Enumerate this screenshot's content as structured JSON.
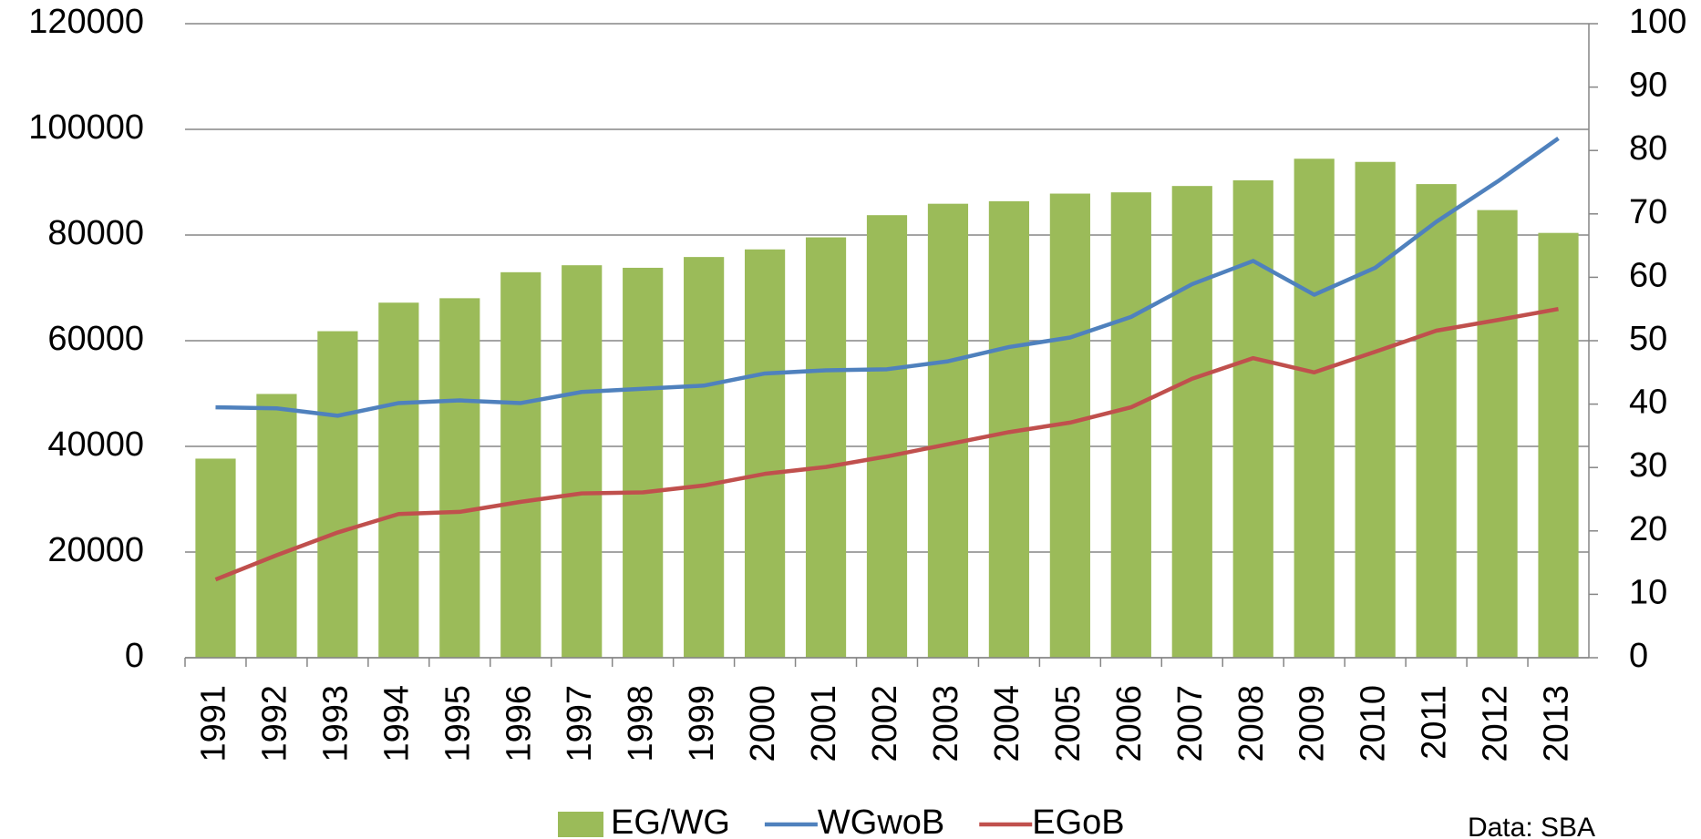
{
  "chart_data": {
    "type": "bar-line",
    "categories": [
      "1991",
      "1992",
      "1993",
      "1994",
      "1995",
      "1996",
      "1997",
      "1998",
      "1999",
      "2000",
      "2001",
      "2002",
      "2003",
      "2004",
      "2005",
      "2006",
      "2007",
      "2008",
      "2009",
      "2010",
      "2011",
      "2012",
      "2013"
    ],
    "series": [
      {
        "name": "EG/WG",
        "type": "bar",
        "axis": "y2",
        "color": "#9bbb59",
        "values": [
          31.4,
          41.6,
          51.5,
          56.0,
          56.7,
          60.8,
          61.9,
          61.5,
          63.2,
          64.4,
          66.3,
          69.8,
          71.6,
          72.0,
          73.2,
          73.4,
          74.4,
          75.3,
          78.7,
          78.2,
          74.7,
          70.6,
          67.0
        ]
      },
      {
        "name": "WGwoB",
        "type": "line",
        "axis": "y",
        "color": "#4f81bd",
        "values": [
          47400,
          47200,
          45800,
          48200,
          48700,
          48200,
          50300,
          50900,
          51500,
          53800,
          54400,
          54600,
          56100,
          58800,
          60600,
          64500,
          70700,
          75100,
          68700,
          73800,
          82500,
          90100,
          98300
        ]
      },
      {
        "name": "EGoB",
        "type": "line",
        "axis": "y",
        "color": "#c0504d",
        "values": [
          14800,
          19400,
          23700,
          27200,
          27600,
          29500,
          31100,
          31300,
          32600,
          34800,
          36100,
          38100,
          40400,
          42700,
          44500,
          47400,
          52800,
          56700,
          54000,
          57900,
          61900,
          63900,
          66000
        ]
      }
    ],
    "ylim": [
      0,
      120000
    ],
    "yticks": [
      0,
      20000,
      40000,
      60000,
      80000,
      100000,
      120000
    ],
    "y2lim": [
      0,
      100
    ],
    "y2ticks": [
      0,
      10,
      20,
      30,
      40,
      50,
      60,
      70,
      80,
      90,
      100
    ],
    "grid": true,
    "legend": "bottom",
    "source": "Data: SBA"
  }
}
